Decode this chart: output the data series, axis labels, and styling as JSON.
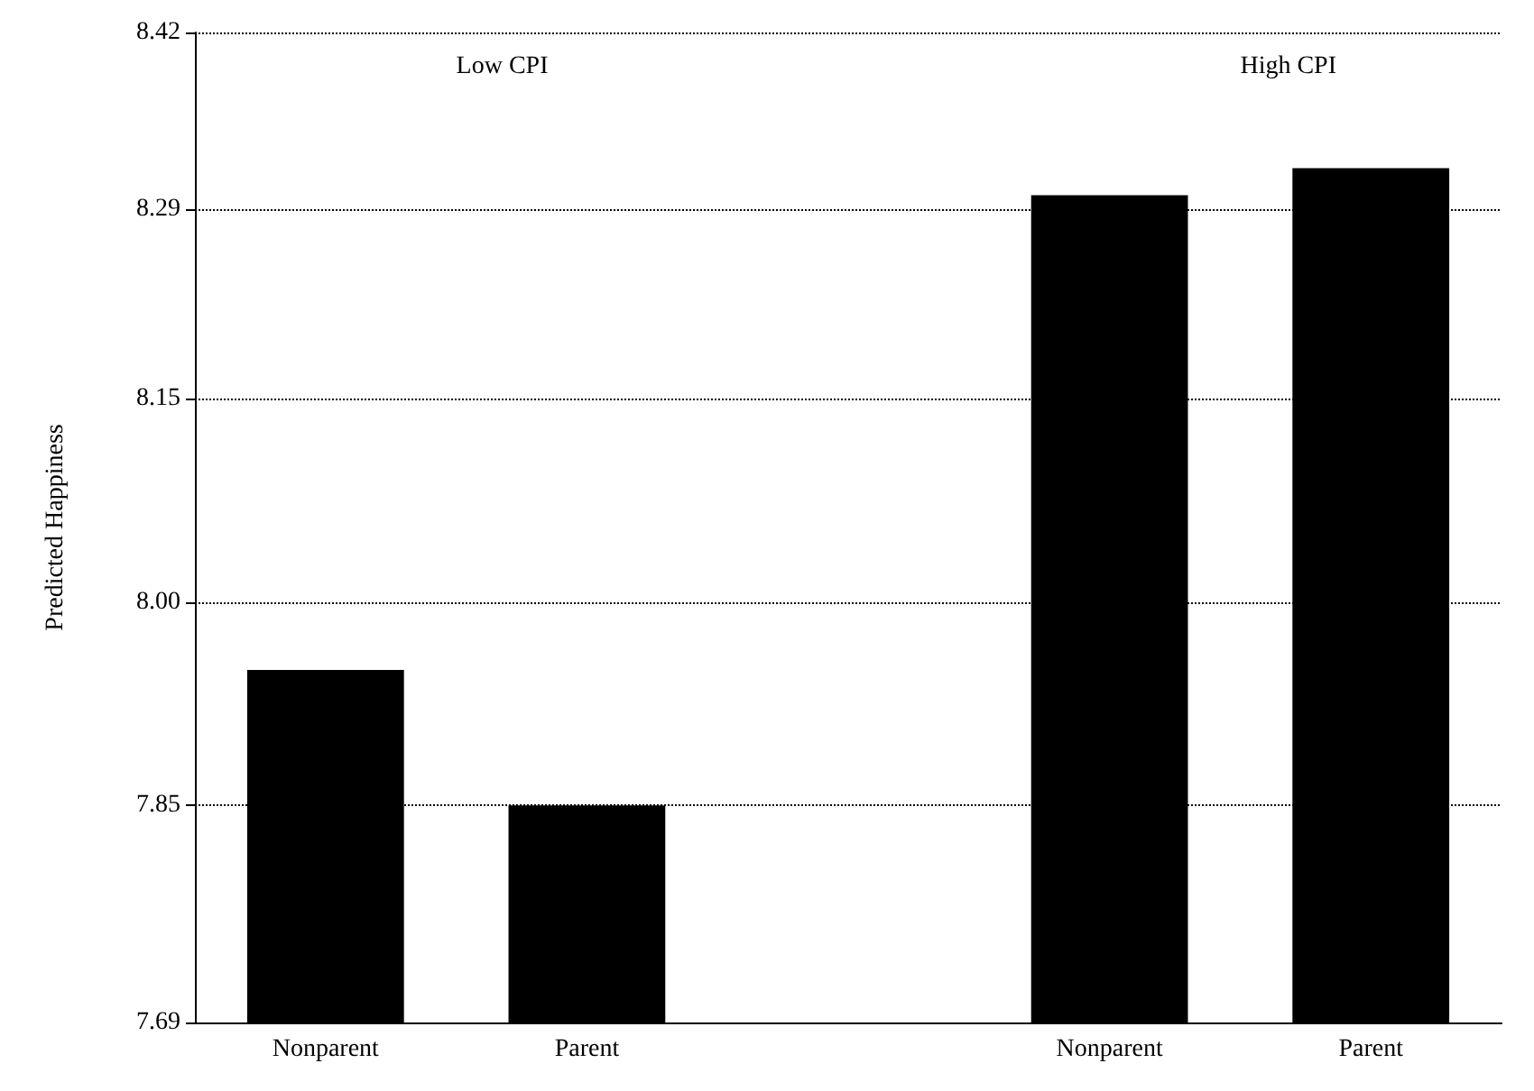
{
  "chart_data": {
    "type": "bar",
    "ylabel": "Predicted Happiness",
    "categories": [
      "Nonparent",
      "Parent",
      null,
      "Nonparent",
      "Parent"
    ],
    "values": [
      7.95,
      7.85,
      null,
      8.3,
      8.32
    ],
    "color": "#000000",
    "ylim": [
      7.69,
      8.42
    ],
    "yticks": [
      {
        "value": 7.69,
        "label": "7.69"
      },
      {
        "value": 7.85,
        "label": "7.85"
      },
      {
        "value": 8.0,
        "label": "8.00"
      },
      {
        "value": 8.15,
        "label": "8.15"
      },
      {
        "value": 8.29,
        "label": "8.29"
      },
      {
        "value": 8.42,
        "label": "8.42"
      }
    ],
    "grid": "y",
    "line_style": "dotted",
    "annotations": [
      "Low CPI",
      "High CPI"
    ]
  }
}
